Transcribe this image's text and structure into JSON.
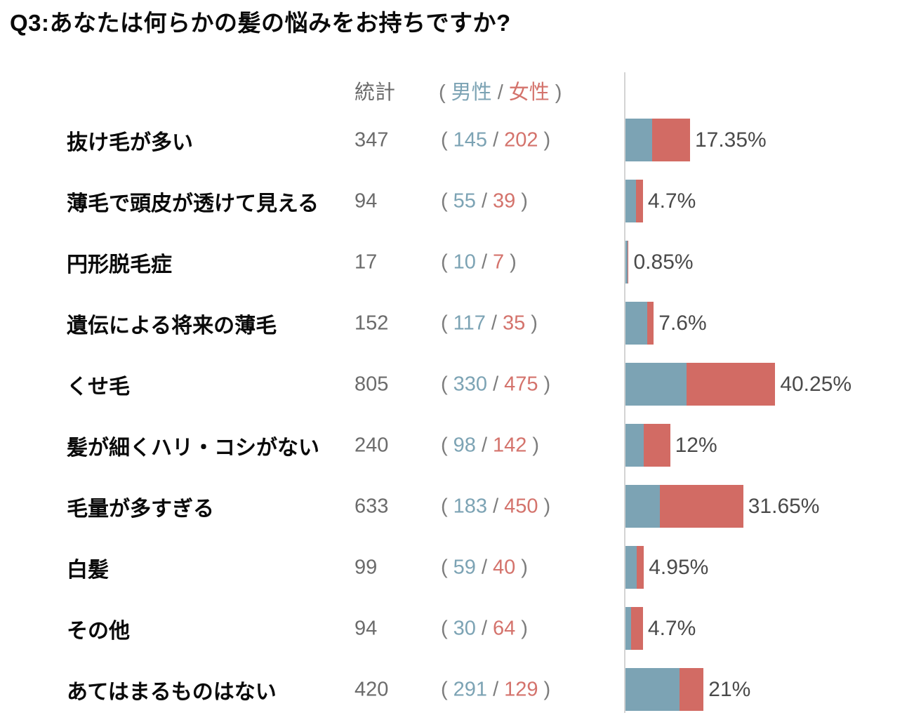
{
  "title": "Q3:あなたは何らかの髪の悩みをお持ちですか?",
  "header": {
    "total_label": "統計",
    "paren_open": "(",
    "male_label": "男性",
    "separator": "/",
    "female_label": "女性",
    "paren_close": ")"
  },
  "colors": {
    "male_bar": "#7ca3b4",
    "female_bar": "#d26b64",
    "male_text": "#7ca3b4",
    "female_text": "#d4736c",
    "paren_text": "#7d7d7d",
    "total_text": "#6b6b6b",
    "percent_text": "#4a4a4a",
    "axis_line": "#d4d4d4",
    "label_text": "#0a0a0a"
  },
  "chart_data": {
    "type": "bar",
    "orientation": "horizontal",
    "stacked": true,
    "title": "Q3:あなたは何らかの髪の悩みをお持ちですか?",
    "series_names": [
      "男性",
      "女性"
    ],
    "unit": "%",
    "xlim": [
      0,
      45
    ],
    "grid": false,
    "legend_position": "top-inline",
    "categories": [
      "抜け毛が多い",
      "薄毛で頭皮が透けて見える",
      "円形脱毛症",
      "遺伝による将来の薄毛",
      "くせ毛",
      "髪が細くハリ・コシがない",
      "毛量が多すぎる",
      "白髪",
      "その他",
      "あてはまるものはない"
    ],
    "rows": [
      {
        "label": "抜け毛が多い",
        "total": "347",
        "male": "145",
        "female": "202",
        "percent_label": "17.35%",
        "percent": 17.35
      },
      {
        "label": "薄毛で頭皮が透けて見える",
        "total": "94",
        "male": "55",
        "female": "39",
        "percent_label": "4.7%",
        "percent": 4.7
      },
      {
        "label": "円形脱毛症",
        "total": "17",
        "male": "10",
        "female": "7",
        "percent_label": "0.85%",
        "percent": 0.85
      },
      {
        "label": "遺伝による将来の薄毛",
        "total": "152",
        "male": "117",
        "female": "35",
        "percent_label": "7.6%",
        "percent": 7.6
      },
      {
        "label": "くせ毛",
        "total": "805",
        "male": "330",
        "female": "475",
        "percent_label": "40.25%",
        "percent": 40.25
      },
      {
        "label": "髪が細くハリ・コシがない",
        "total": "240",
        "male": "98",
        "female": "142",
        "percent_label": "12%",
        "percent": 12
      },
      {
        "label": "毛量が多すぎる",
        "total": "633",
        "male": "183",
        "female": "450",
        "percent_label": "31.65%",
        "percent": 31.65
      },
      {
        "label": "白髪",
        "total": "99",
        "male": "59",
        "female": "40",
        "percent_label": "4.95%",
        "percent": 4.95
      },
      {
        "label": "その他",
        "total": "94",
        "male": "30",
        "female": "64",
        "percent_label": "4.7%",
        "percent": 4.7
      },
      {
        "label": "あてはまるものはない",
        "total": "420",
        "male": "291",
        "female": "129",
        "percent_label": "21%",
        "percent": 21
      }
    ]
  }
}
